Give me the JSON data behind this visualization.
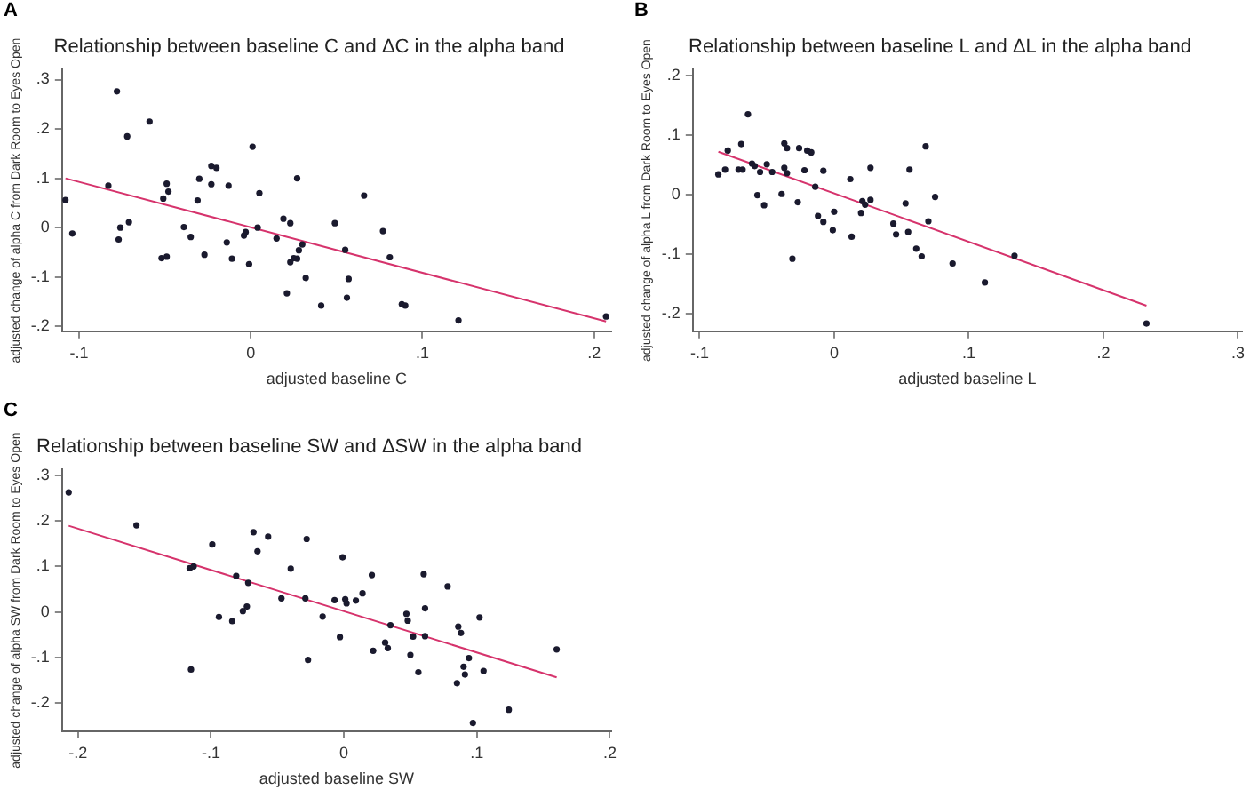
{
  "chart_data": [
    {
      "type": "scatter",
      "title": "Relationship between baseline C and ΔC in the alpha band",
      "xlabel": "adjusted baseline C",
      "ylabel": "adjusted change of alpha C from Dark Room to Eyes Open",
      "annotations": [
        "A"
      ],
      "grid": false,
      "legend": false,
      "xlim": [
        -0.11,
        0.21
      ],
      "xticks": [
        {
          "value": -0.1,
          "label": "-.1"
        },
        {
          "value": 0,
          "label": "0"
        },
        {
          "value": 0.1,
          "label": ".1"
        },
        {
          "value": 0.2,
          "label": ".2"
        }
      ],
      "ylim": [
        -0.21,
        0.32
      ],
      "yticks": [
        {
          "value": -0.2,
          "label": "-.2"
        },
        {
          "value": -0.1,
          "label": "-.1"
        },
        {
          "value": 0,
          "label": "0"
        },
        {
          "value": 0.1,
          "label": ".1"
        },
        {
          "value": 0.2,
          "label": ".2"
        },
        {
          "value": 0.3,
          "label": ".3"
        }
      ],
      "series": [
        {
          "type": "scatter",
          "marker": "circle",
          "color": "#1a1a2e",
          "x": [
            -0.108,
            -0.104,
            -0.078,
            -0.072,
            -0.083,
            -0.076,
            -0.077,
            -0.071,
            -0.059,
            -0.051,
            -0.049,
            -0.048,
            -0.052,
            -0.049,
            -0.039,
            -0.035,
            -0.031,
            -0.03,
            -0.027,
            -0.023,
            -0.023,
            -0.02,
            -0.014,
            -0.013,
            -0.011,
            -0.004,
            -0.003,
            -0.001,
            0.001,
            0.004,
            0.005,
            0.015,
            0.019,
            0.021,
            0.023,
            0.023,
            0.025,
            0.027,
            0.027,
            0.028,
            0.03,
            0.032,
            0.041,
            0.049,
            0.055,
            0.056,
            0.057,
            0.066,
            0.077,
            0.081,
            0.088,
            0.09,
            0.121,
            0.207
          ],
          "values": [
            0.056,
            -0.012,
            0.276,
            0.185,
            0.085,
            0.0,
            -0.024,
            0.011,
            0.215,
            0.059,
            0.089,
            0.073,
            -0.062,
            -0.059,
            0.001,
            -0.019,
            0.055,
            0.099,
            -0.055,
            0.125,
            0.088,
            0.121,
            -0.03,
            0.085,
            -0.063,
            -0.016,
            -0.009,
            -0.074,
            0.164,
            0.0,
            0.07,
            -0.022,
            0.018,
            -0.133,
            0.009,
            -0.07,
            -0.062,
            0.1,
            -0.063,
            -0.046,
            -0.034,
            -0.102,
            -0.158,
            0.009,
            -0.045,
            -0.142,
            -0.104,
            0.065,
            -0.007,
            -0.06,
            -0.155,
            -0.158,
            -0.188,
            -0.18
          ]
        },
        {
          "type": "line",
          "marker": "none",
          "line_style": "solid",
          "color": "#d6336c",
          "x": [
            -0.108,
            0.207
          ],
          "values": [
            0.1,
            -0.19
          ]
        }
      ]
    },
    {
      "type": "scatter",
      "title": "Relationship between baseline L and ΔL in the alpha band",
      "xlabel": "adjusted baseline L",
      "ylabel": "adjusted change of alpha L from Dark Room to Eyes Open",
      "annotations": [
        "B"
      ],
      "grid": false,
      "legend": false,
      "xlim": [
        -0.105,
        0.303
      ],
      "xticks": [
        {
          "value": -0.1,
          "label": "-.1"
        },
        {
          "value": 0,
          "label": "0"
        },
        {
          "value": 0.1,
          "label": ".1"
        },
        {
          "value": 0.2,
          "label": ".2"
        },
        {
          "value": 0.3,
          "label": ".3"
        }
      ],
      "ylim": [
        -0.23,
        0.21
      ],
      "yticks": [
        {
          "value": -0.2,
          "label": "-.2"
        },
        {
          "value": -0.1,
          "label": "-.1"
        },
        {
          "value": 0,
          "label": "0"
        },
        {
          "value": 0.1,
          "label": ".1"
        },
        {
          "value": 0.2,
          "label": ".2"
        }
      ],
      "series": [
        {
          "type": "scatter",
          "marker": "circle",
          "color": "#1a1a2e",
          "x": [
            -0.086,
            -0.081,
            -0.079,
            -0.071,
            -0.069,
            -0.068,
            -0.064,
            -0.061,
            -0.059,
            -0.057,
            -0.055,
            -0.052,
            -0.05,
            -0.046,
            -0.039,
            -0.037,
            -0.037,
            -0.035,
            -0.035,
            -0.031,
            -0.027,
            -0.026,
            -0.022,
            -0.02,
            -0.017,
            -0.014,
            -0.012,
            -0.008,
            -0.008,
            -0.001,
            0.0,
            0.012,
            0.013,
            0.02,
            0.021,
            0.023,
            0.027,
            0.027,
            0.044,
            0.046,
            0.053,
            0.055,
            0.056,
            0.061,
            0.065,
            0.068,
            0.07,
            0.075,
            0.088,
            0.112,
            0.134,
            0.232
          ],
          "values": [
            0.034,
            0.042,
            0.074,
            0.042,
            0.085,
            0.042,
            0.135,
            0.052,
            0.048,
            -0.001,
            0.038,
            -0.018,
            0.051,
            0.038,
            0.001,
            0.086,
            0.045,
            0.078,
            0.036,
            -0.108,
            -0.013,
            0.078,
            0.041,
            0.074,
            0.071,
            0.013,
            -0.036,
            -0.046,
            0.04,
            -0.06,
            -0.029,
            0.026,
            -0.071,
            -0.031,
            -0.011,
            -0.017,
            -0.009,
            0.045,
            -0.049,
            -0.067,
            -0.015,
            -0.063,
            0.042,
            -0.091,
            -0.104,
            0.081,
            -0.045,
            -0.004,
            -0.116,
            -0.148,
            -0.103,
            -0.217
          ]
        },
        {
          "type": "line",
          "marker": "none",
          "line_style": "solid",
          "color": "#d6336c",
          "x": [
            -0.086,
            0.232
          ],
          "values": [
            0.072,
            -0.187
          ]
        }
      ]
    },
    {
      "type": "scatter",
      "title": "Relationship between baseline SW and ΔSW in the alpha band",
      "xlabel": "adjusted baseline SW",
      "ylabel": "adjusted change of alpha SW from Dark Room to Eyes Open",
      "annotations": [
        "C"
      ],
      "grid": false,
      "legend": false,
      "xlim": [
        -0.212,
        0.201
      ],
      "xticks": [
        {
          "value": -0.2,
          "label": "-.2"
        },
        {
          "value": -0.1,
          "label": "-.1"
        },
        {
          "value": 0,
          "label": "0"
        },
        {
          "value": 0.1,
          "label": ".1"
        },
        {
          "value": 0.2,
          "label": ".2"
        }
      ],
      "ylim": [
        -0.261,
        0.312
      ],
      "yticks": [
        {
          "value": -0.2,
          "label": "-.2"
        },
        {
          "value": -0.1,
          "label": "-.1"
        },
        {
          "value": 0,
          "label": "0"
        },
        {
          "value": 0.1,
          "label": ".1"
        },
        {
          "value": 0.2,
          "label": ".2"
        },
        {
          "value": 0.3,
          "label": ".3"
        }
      ],
      "series": [
        {
          "type": "scatter",
          "marker": "circle",
          "color": "#1a1a2e",
          "x": [
            -0.207,
            -0.156,
            -0.116,
            -0.113,
            -0.115,
            -0.099,
            -0.094,
            -0.084,
            -0.081,
            -0.076,
            -0.073,
            -0.072,
            -0.068,
            -0.065,
            -0.057,
            -0.047,
            -0.04,
            -0.029,
            -0.028,
            -0.027,
            -0.016,
            -0.007,
            -0.003,
            -0.001,
            0.001,
            0.002,
            0.009,
            0.014,
            0.021,
            0.022,
            0.031,
            0.033,
            0.035,
            0.047,
            0.048,
            0.05,
            0.052,
            0.056,
            0.06,
            0.061,
            0.061,
            0.078,
            0.085,
            0.086,
            0.088,
            0.09,
            0.091,
            0.094,
            0.097,
            0.102,
            0.105,
            0.124,
            0.16
          ],
          "values": [
            0.262,
            0.19,
            0.096,
            0.1,
            -0.126,
            0.148,
            -0.011,
            -0.02,
            0.079,
            0.002,
            0.012,
            0.064,
            0.175,
            0.133,
            0.165,
            0.03,
            0.095,
            0.03,
            0.16,
            -0.105,
            -0.01,
            0.026,
            -0.055,
            0.12,
            0.028,
            0.019,
            0.025,
            0.041,
            0.081,
            -0.085,
            -0.067,
            -0.079,
            -0.029,
            -0.004,
            -0.019,
            -0.094,
            -0.054,
            -0.132,
            0.083,
            0.008,
            -0.053,
            0.056,
            -0.156,
            -0.032,
            -0.046,
            -0.12,
            -0.137,
            -0.101,
            -0.243,
            -0.012,
            -0.129,
            -0.214,
            -0.082
          ]
        },
        {
          "type": "line",
          "marker": "none",
          "line_style": "solid",
          "color": "#d6336c",
          "x": [
            -0.207,
            0.16
          ],
          "values": [
            0.189,
            -0.143
          ]
        }
      ]
    }
  ]
}
